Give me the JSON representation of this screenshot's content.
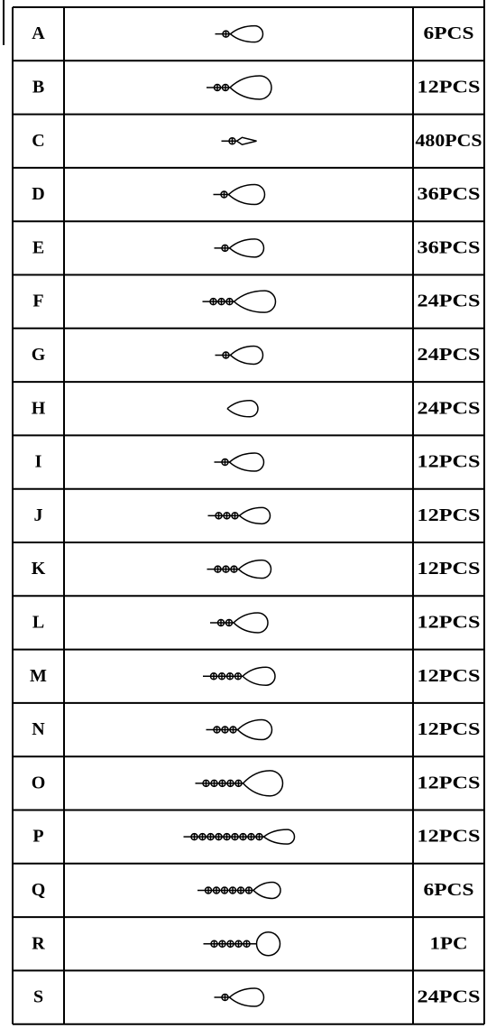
{
  "table": {
    "rows": [
      [
        "A",
        "6PCS"
      ],
      [
        "B",
        "12PCS"
      ],
      [
        "C",
        "480PCS"
      ],
      [
        "D",
        "36PCS"
      ],
      [
        "E",
        "36PCS"
      ],
      [
        "F",
        "24PCS"
      ],
      [
        "G",
        "24PCS"
      ],
      [
        "H",
        "24PCS"
      ],
      [
        "I",
        "12PCS"
      ],
      [
        "J",
        "12PCS"
      ],
      [
        "K",
        "12PCS"
      ],
      [
        "L",
        "12PCS"
      ],
      [
        "M",
        "12PCS"
      ],
      [
        "N",
        "12PCS"
      ],
      [
        "O",
        "12PCS"
      ],
      [
        "P",
        "12PCS"
      ],
      [
        "Q",
        "6PCS"
      ],
      [
        "R",
        "1PC"
      ],
      [
        "S",
        "24PCS"
      ]
    ]
  }
}
